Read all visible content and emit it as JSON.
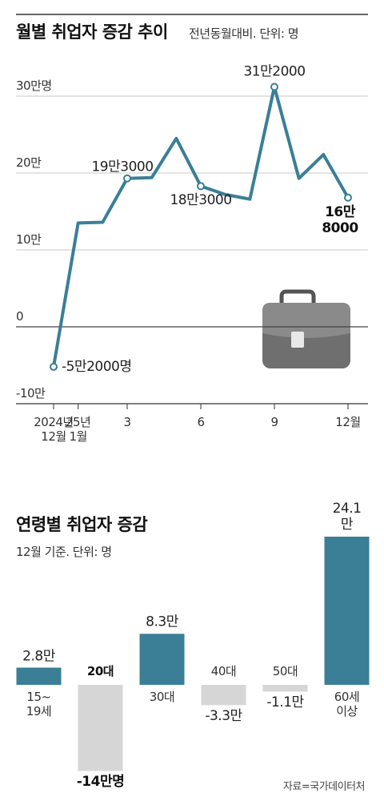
{
  "chart_data": [
    {
      "type": "line",
      "title": "월별 취업자 증감 추이",
      "subtitle": "전년동월대비. 단위: 명",
      "categories": [
        "2024년\n12월",
        "25년\n1월",
        null,
        "3",
        null,
        null,
        "6",
        null,
        null,
        "9",
        null,
        null,
        "12월"
      ],
      "values": [
        -52000,
        135000,
        136000,
        193000,
        194000,
        245000,
        183000,
        172000,
        166000,
        312000,
        193000,
        224000,
        168000
      ],
      "value_labels": [
        "-5만2000명",
        null,
        null,
        "19만3000",
        null,
        null,
        "18만3000",
        null,
        null,
        "31만2000",
        null,
        null,
        "16만8000"
      ],
      "highlight": 12,
      "color": "#3a7f96",
      "ylim": [
        -100000,
        300000
      ],
      "yticks": [
        {
          "value": -100000,
          "label": "-10만"
        },
        0,
        {
          "value": 100000,
          "label": "10만"
        },
        {
          "value": 200000,
          "label": "20만"
        },
        {
          "value": 300000,
          "label": "30만명"
        }
      ],
      "grid": true
    },
    {
      "type": "bar",
      "title": "연령별 취업자 증감",
      "subtitle": "12월 기준. 단위: 명",
      "categories": [
        "15~\n19세",
        "20대",
        "30대",
        "40대",
        "50대",
        "60세\n이상"
      ],
      "values": [
        28000,
        -140000,
        83000,
        -33000,
        -11000,
        241000
      ],
      "value_labels": [
        "2.8만",
        "-14만명",
        "8.3만",
        "-3.3만",
        "-1.1만",
        "24.1만"
      ],
      "colors": [
        "#3a7f96",
        "#d6d6d6",
        "#3a7f96",
        "#d6d6d6",
        "#d6d6d6",
        "#3a7f96"
      ],
      "highlight": 1,
      "source": "자료=국가데이터처"
    }
  ]
}
